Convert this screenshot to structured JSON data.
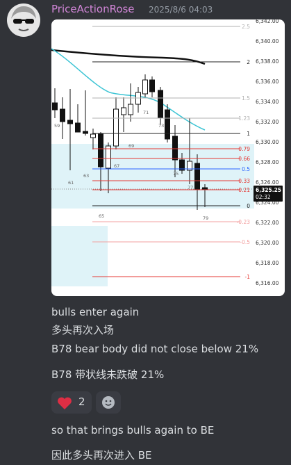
{
  "message": {
    "author": "PriceActionRose",
    "timestamp": "2025/8/6 04:03",
    "lines": [
      "bulls enter again",
      "多头再次入场",
      "B78 bear body did not close below 21%",
      "B78 带状线未跌破 21%",
      "so that brings bulls again to BE",
      "因此多头再次进入 BE"
    ],
    "reactions": [
      {
        "count": 2
      }
    ]
  },
  "attachment": {
    "price_axis": [
      "6,342.00",
      "6,340.00",
      "6,338.00",
      "6,336.00",
      "6,334.00",
      "6,332.00",
      "6,330.00",
      "6,328.00",
      "6,326.00",
      "6,324.00",
      "6,322.00",
      "6,320.00",
      "6,318.00",
      "6,316.00"
    ],
    "fib_levels": [
      {
        "label": "2.5",
        "color": "#b0b0b0"
      },
      {
        "label": "2",
        "color": "#222222"
      },
      {
        "label": "1.5",
        "color": "#b0b0b0"
      },
      {
        "label": "1.23",
        "color": "#b0b0b0"
      },
      {
        "label": "1",
        "color": "#222222"
      },
      {
        "label": "0.79",
        "color": "#e53935"
      },
      {
        "label": "0.66",
        "color": "#e53935"
      },
      {
        "label": "0.5",
        "color": "#2962ff"
      },
      {
        "label": "0.33",
        "color": "#e53935"
      },
      {
        "label": "0.21",
        "color": "#e53935"
      },
      {
        "label": "0",
        "color": "#222222"
      },
      {
        "label": "-0.23",
        "color": "#f3a0a0"
      },
      {
        "label": "-0.5",
        "color": "#f3a0a0"
      },
      {
        "label": "-1",
        "color": "#e53935"
      }
    ],
    "bar_numbers": [
      "59",
      "61",
      "63",
      "65",
      "67",
      "69",
      "71",
      "73",
      "75",
      "77",
      "79"
    ],
    "price_tag": {
      "price": "6,325.25",
      "timer": "02:32"
    }
  }
}
